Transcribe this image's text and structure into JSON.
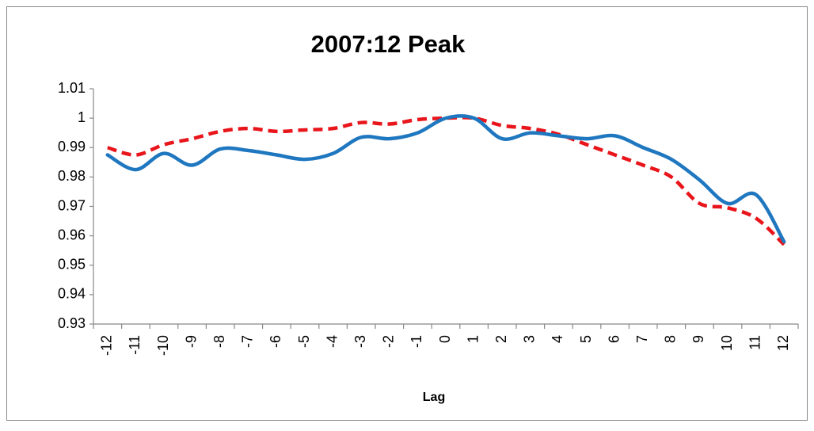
{
  "chart_data": {
    "type": "line",
    "title": "2007:12 Peak",
    "x_label": "Lag",
    "categories": [
      "-12",
      "-11",
      "-10",
      "-9",
      "-8",
      "-7",
      "-6",
      "-5",
      "-4",
      "-3",
      "-2",
      "-1",
      "0",
      "1",
      "2",
      "3",
      "4",
      "5",
      "6",
      "7",
      "8",
      "9",
      "10",
      "11",
      "12"
    ],
    "series": [
      {
        "color": "#1f77c0",
        "dash": false,
        "values": [
          0.9875,
          0.9825,
          0.988,
          0.984,
          0.9895,
          0.989,
          0.9875,
          0.986,
          0.988,
          0.9935,
          0.993,
          0.995,
          1.0,
          1.0,
          0.993,
          0.995,
          0.994,
          0.993,
          0.994,
          0.99,
          0.986,
          0.979,
          0.971,
          0.974,
          0.958
        ]
      },
      {
        "color": "#e8151b",
        "dash": true,
        "values": [
          0.99,
          0.9875,
          0.991,
          0.993,
          0.9955,
          0.9965,
          0.9955,
          0.996,
          0.9965,
          0.9985,
          0.998,
          0.9995,
          1.0,
          1.0,
          0.9975,
          0.9965,
          0.9945,
          0.991,
          0.9875,
          0.984,
          0.98,
          0.971,
          0.9695,
          0.966,
          0.957
        ]
      }
    ],
    "ylim": [
      0.93,
      1.01
    ],
    "yticks": [
      0.93,
      0.94,
      0.95,
      0.96,
      0.97,
      0.98,
      0.99,
      1,
      1.01
    ],
    "grid": false
  }
}
